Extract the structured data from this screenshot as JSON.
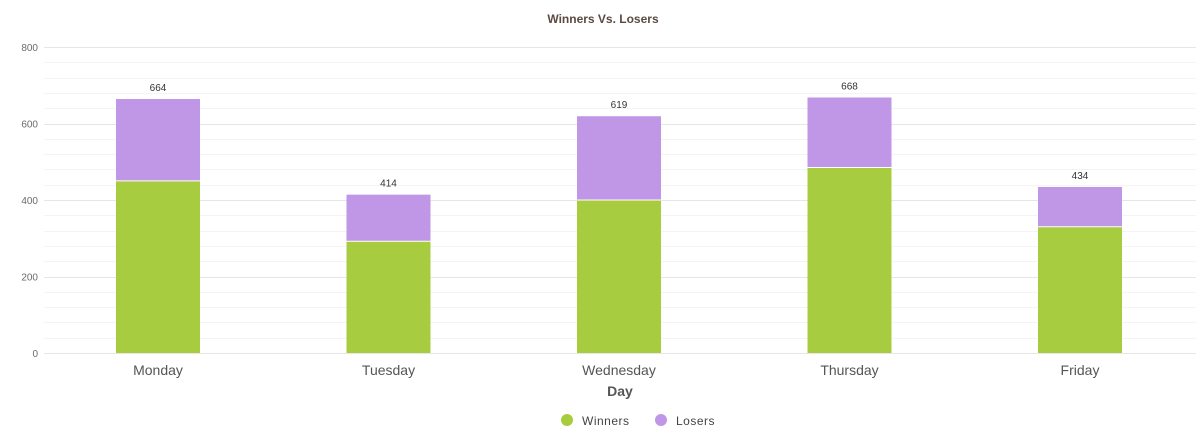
{
  "chart_data": {
    "type": "bar",
    "stacked": true,
    "title": "Winners Vs. Losers",
    "xlabel": "Day",
    "ylabel": "",
    "categories": [
      "Monday",
      "Tuesday",
      "Wednesday",
      "Thursday",
      "Friday"
    ],
    "series": [
      {
        "name": "Winners",
        "color": "#a8cc40",
        "values": [
          450,
          292,
          400,
          485,
          330
        ]
      },
      {
        "name": "Losers",
        "color": "#c096e6",
        "values": [
          214,
          122,
          219,
          183,
          104
        ]
      }
    ],
    "totals": [
      664,
      414,
      619,
      668,
      434
    ],
    "ylim": [
      0,
      800
    ],
    "yticks": [
      0,
      200,
      400,
      600,
      800
    ],
    "grid": true,
    "legend": "bottom-center"
  }
}
